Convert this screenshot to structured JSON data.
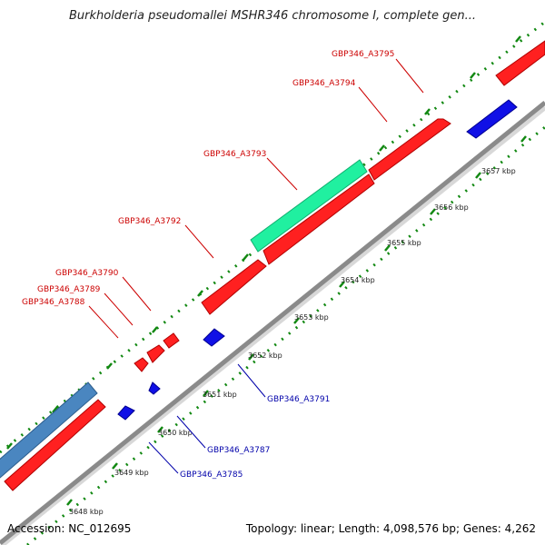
{
  "title": "Burkholderia pseudomallei MSHR346 chromosome I, complete gen...",
  "footer": {
    "accession": "Accession: NC_012695",
    "info": "Topology: linear; Length: 4,098,576 bp; Genes: 4,262"
  },
  "scale_ticks": [
    "3648 kbp",
    "3649 kbp",
    "3650 kbp",
    "3651 kbp",
    "3652 kbp",
    "3653 kbp",
    "3654 kbp",
    "3655 kbp",
    "3656 kbp",
    "3657 kbp"
  ],
  "colors": {
    "forward_gene": "#ff2020",
    "reverse_gene": "#1010e6",
    "rna_feature": "#20f0a0",
    "repeat_feature": "#4a86c0",
    "axis": "#888888",
    "tick_dots": "#118811",
    "forward_label": "#cc0000",
    "reverse_label": "#0000aa"
  },
  "gene_labels": {
    "forward": [
      "GBP346_A3795",
      "GBP346_A3794",
      "GBP346_A3793",
      "GBP346_A3792",
      "GBP346_A3790",
      "GBP346_A3789",
      "GBP346_A3788"
    ],
    "reverse": [
      "GBP346_A3791",
      "GBP346_A3787",
      "GBP346_A3785"
    ]
  }
}
